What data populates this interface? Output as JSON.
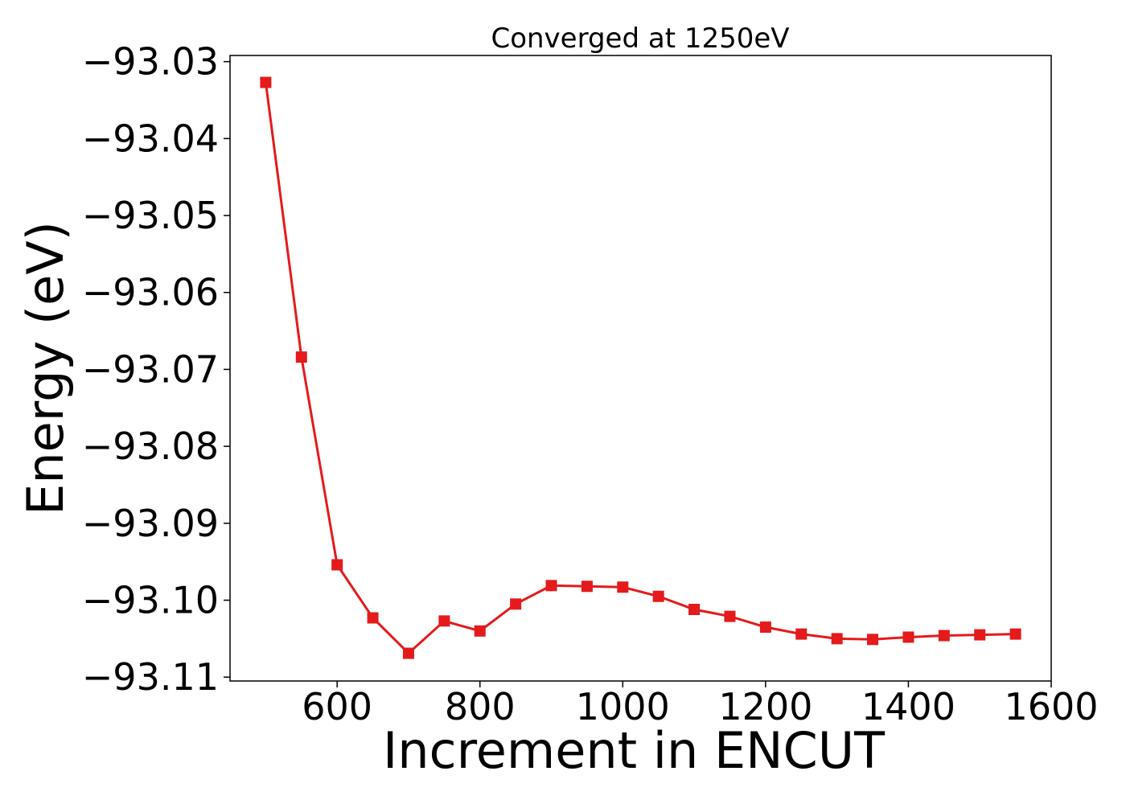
{
  "chart_data": {
    "type": "line",
    "title": "Converged at 1250eV",
    "xlabel": "Increment in ENCUT",
    "ylabel": "Energy (eV)",
    "xlim": [
      450,
      1600
    ],
    "ylim": [
      -93.1105,
      -93.0292
    ],
    "xticks": [
      600,
      800,
      1000,
      1200,
      1400,
      1600
    ],
    "xtick_labels": [
      "600",
      "800",
      "1000",
      "1200",
      "1400",
      "1600"
    ],
    "yticks": [
      -93.03,
      -93.04,
      -93.05,
      -93.06,
      -93.07,
      -93.08,
      -93.09,
      -93.1,
      -93.11
    ],
    "ytick_labels": [
      "−93.03",
      "−93.04",
      "−93.05",
      "−93.06",
      "−93.07",
      "−93.08",
      "−93.09",
      "−93.10",
      "−93.11"
    ],
    "grid": false,
    "legend": "none",
    "series": [
      {
        "color": "#e41a1c",
        "marker": "square",
        "x": [
          500,
          550,
          600,
          650,
          700,
          750,
          800,
          850,
          900,
          950,
          1000,
          1050,
          1100,
          1150,
          1200,
          1250,
          1300,
          1350,
          1400,
          1450,
          1500,
          1550
        ],
        "y": [
          -93.0327,
          -93.0684,
          -93.0954,
          -93.1023,
          -93.1069,
          -93.1027,
          -93.104,
          -93.1005,
          -93.0981,
          -93.0982,
          -93.0983,
          -93.0995,
          -93.1012,
          -93.1021,
          -93.1035,
          -93.1044,
          -93.105,
          -93.1051,
          -93.1048,
          -93.1046,
          -93.1045,
          -93.1044
        ]
      }
    ]
  }
}
